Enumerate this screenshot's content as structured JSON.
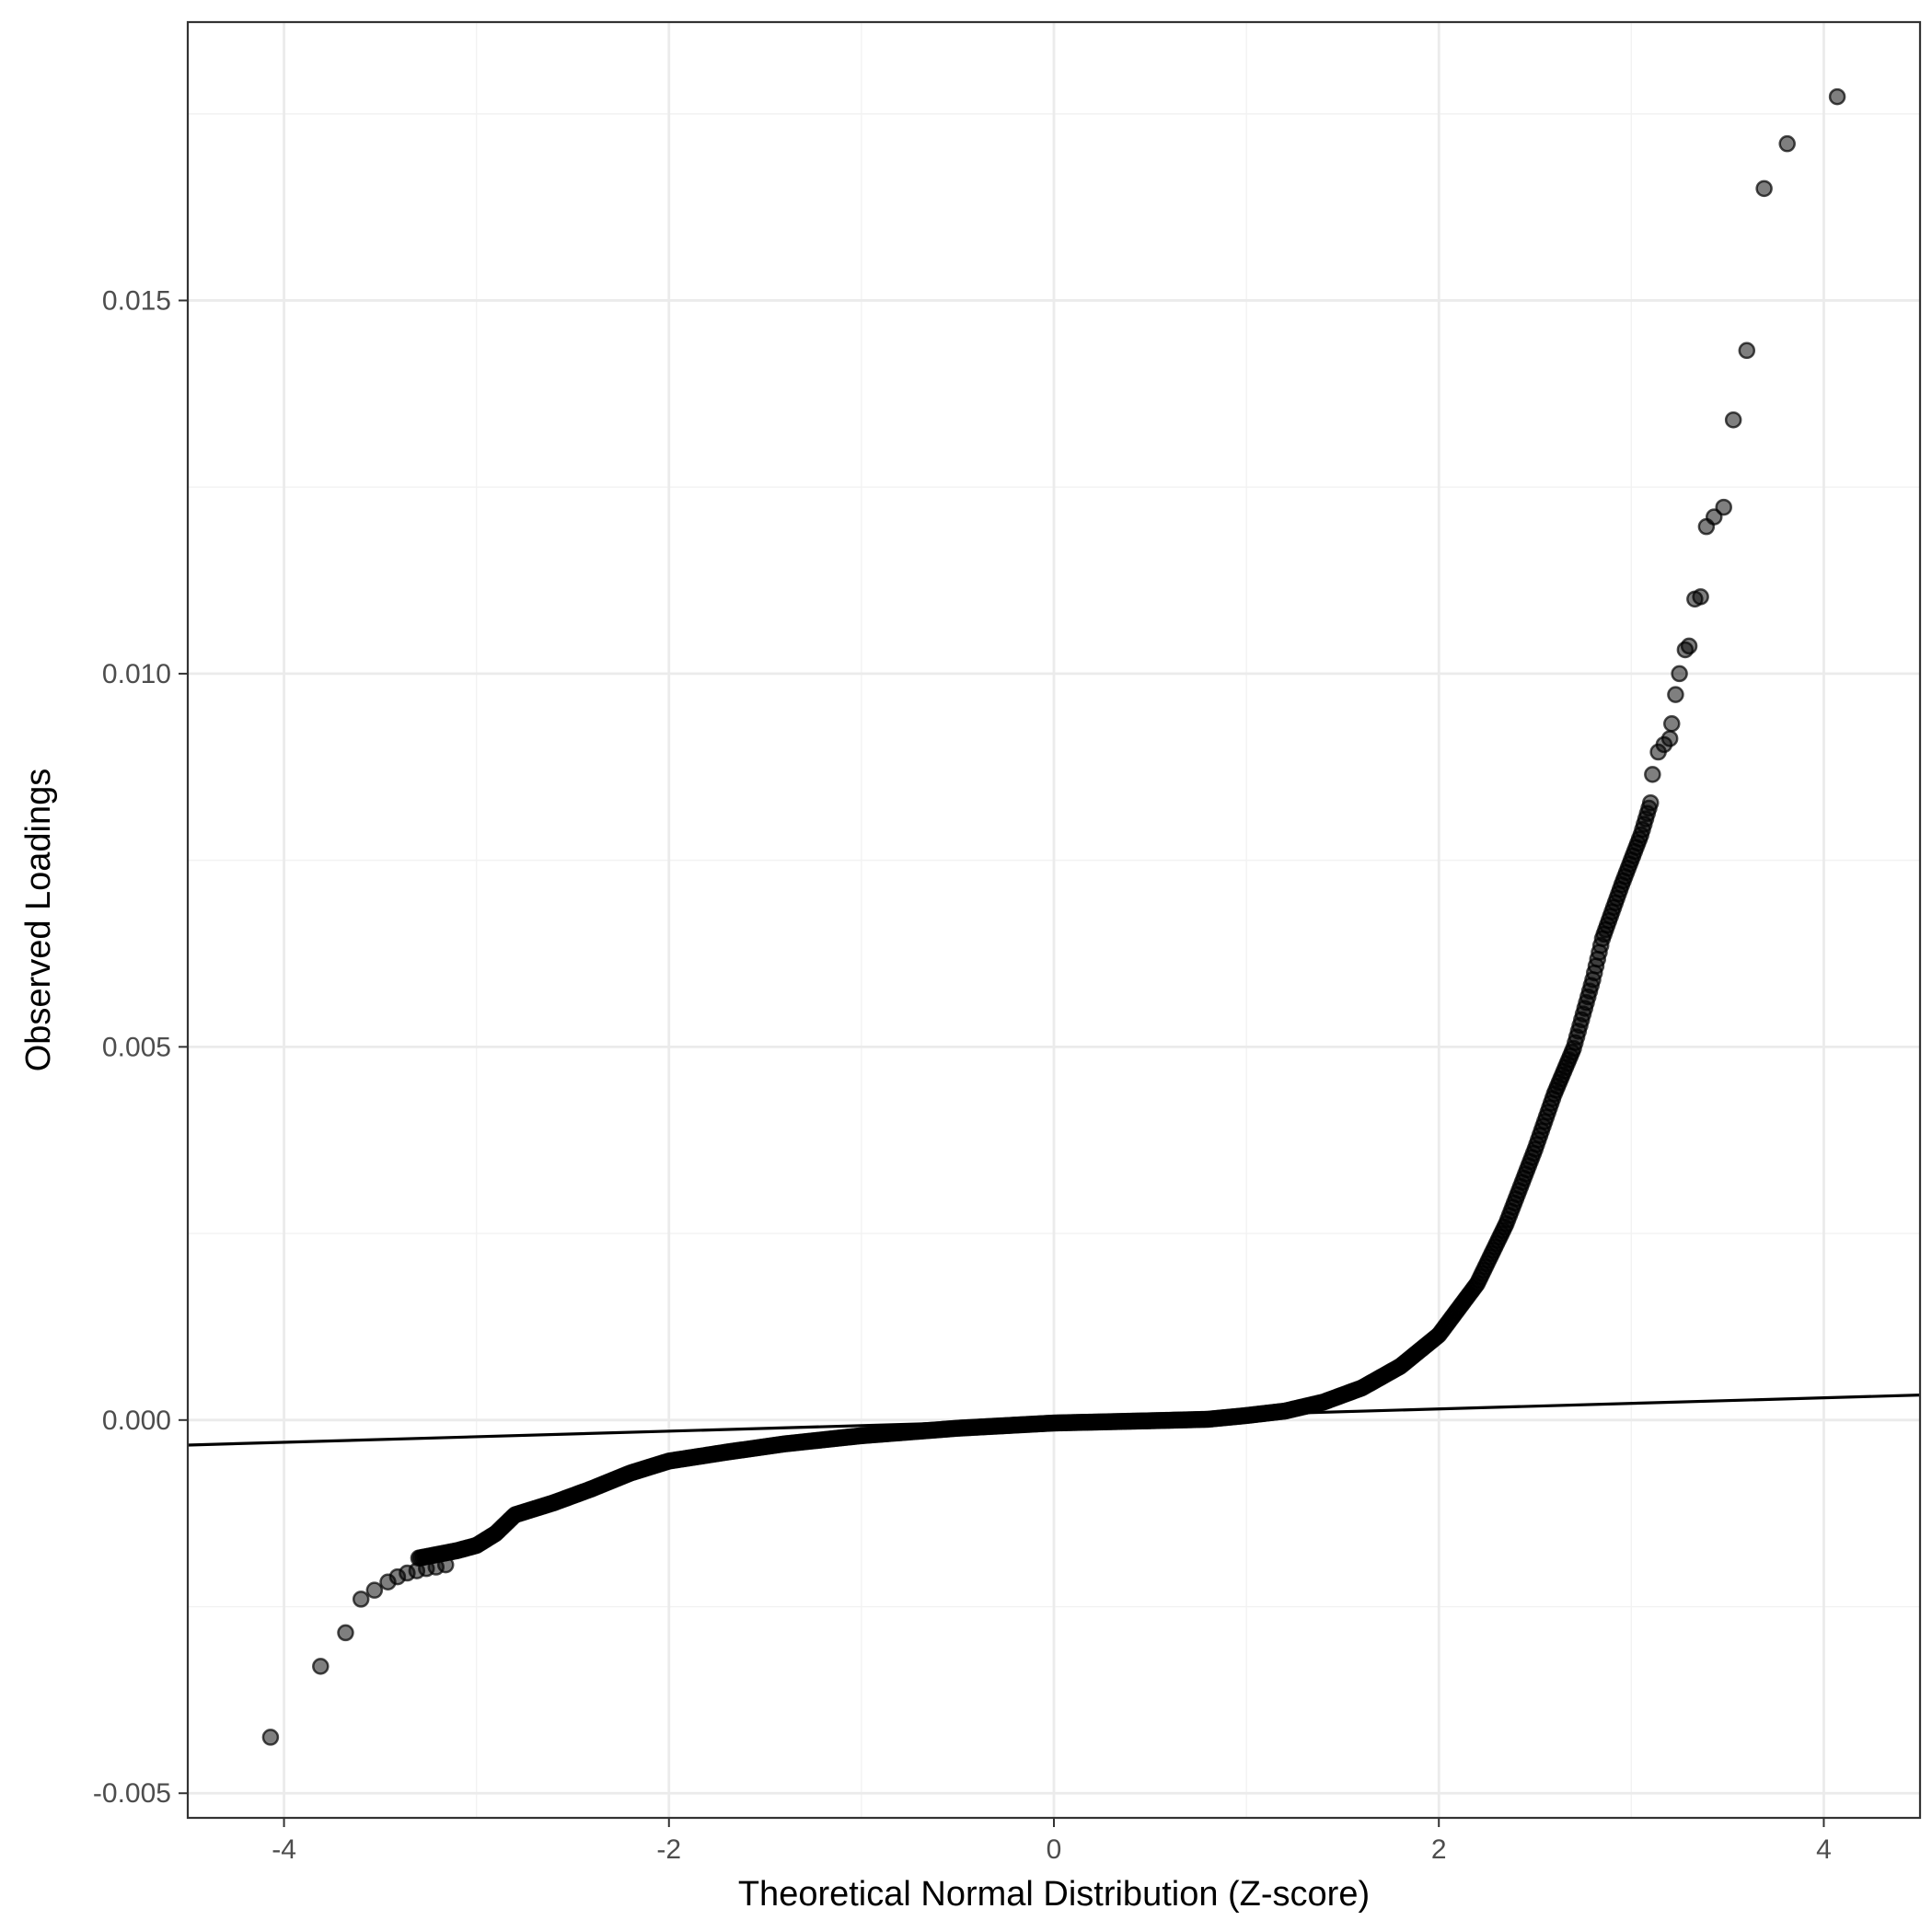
{
  "chart_data": {
    "type": "scatter",
    "title": "",
    "xlabel": "Theoretical Normal Distribution (Z-score)",
    "ylabel": "Observed Loadings",
    "xlim": [
      -4.5,
      4.5
    ],
    "ylim": [
      -0.00533,
      0.01873
    ],
    "x_ticks": [
      -4,
      -2,
      0,
      2,
      4
    ],
    "x_tick_labels": [
      "-4",
      "-2",
      "0",
      "2",
      "4"
    ],
    "y_ticks": [
      -0.005,
      0.0,
      0.005,
      0.01,
      0.015
    ],
    "y_tick_labels": [
      "-0.005",
      "0.000",
      "0.005",
      "0.010",
      "0.015"
    ],
    "grid": true,
    "theme": "black-and-white",
    "point_color": "#000000",
    "point_alpha": 0.5,
    "reference_line": {
      "slope": 7.45e-05,
      "intercept": 0.0,
      "color": "#000000"
    },
    "curve_knots": [
      [
        -3.3,
        -0.00185
      ],
      [
        -3.1,
        -0.00175
      ],
      [
        -3.0,
        -0.00168
      ],
      [
        -2.9,
        -0.00152
      ],
      [
        -2.8,
        -0.00127
      ],
      [
        -2.6,
        -0.00111
      ],
      [
        -2.4,
        -0.00092
      ],
      [
        -2.2,
        -0.00071
      ],
      [
        -2.0,
        -0.00055
      ],
      [
        -1.7,
        -0.00043
      ],
      [
        -1.4,
        -0.00032
      ],
      [
        -1.0,
        -0.00021
      ],
      [
        -0.5,
        -0.00011
      ],
      [
        0.0,
        -4e-05
      ],
      [
        0.5,
        -1e-05
      ],
      [
        0.8,
        1e-05
      ],
      [
        1.0,
        6e-05
      ],
      [
        1.2,
        0.00012
      ],
      [
        1.4,
        0.00024
      ],
      [
        1.6,
        0.00043
      ],
      [
        1.8,
        0.00072
      ],
      [
        2.0,
        0.00114
      ],
      [
        2.2,
        0.00183
      ],
      [
        2.35,
        0.00263
      ],
      [
        2.5,
        0.00363
      ],
      [
        2.6,
        0.00437
      ],
      [
        2.7,
        0.00498
      ],
      [
        2.8,
        0.0059
      ],
      [
        2.85,
        0.00645
      ],
      [
        2.95,
        0.00717
      ],
      [
        3.05,
        0.00784
      ],
      [
        3.1,
        0.00827
      ]
    ],
    "tail_points": [
      [
        -4.07,
        -0.00425
      ],
      [
        -3.81,
        -0.0033
      ],
      [
        -3.68,
        -0.00285
      ],
      [
        -3.6,
        -0.0024
      ],
      [
        -3.53,
        -0.00228
      ],
      [
        -3.46,
        -0.00217
      ],
      [
        -3.41,
        -0.0021
      ],
      [
        -3.36,
        -0.00205
      ],
      [
        -3.31,
        -0.00202
      ],
      [
        -3.26,
        -0.00199
      ],
      [
        -3.21,
        -0.00197
      ],
      [
        -3.16,
        -0.00194
      ],
      [
        3.11,
        0.00865
      ],
      [
        3.14,
        0.00895
      ],
      [
        3.17,
        0.00905
      ],
      [
        3.2,
        0.00913
      ],
      [
        3.21,
        0.00933
      ],
      [
        3.23,
        0.00972
      ],
      [
        3.25,
        0.01
      ],
      [
        3.28,
        0.01032
      ],
      [
        3.3,
        0.01037
      ],
      [
        3.33,
        0.011
      ],
      [
        3.36,
        0.01103
      ],
      [
        3.39,
        0.01197
      ],
      [
        3.43,
        0.0121
      ],
      [
        3.48,
        0.01223
      ],
      [
        3.53,
        0.0134
      ],
      [
        3.6,
        0.01433
      ],
      [
        3.69,
        0.0165
      ],
      [
        3.81,
        0.0171
      ],
      [
        4.07,
        0.01773
      ]
    ]
  }
}
